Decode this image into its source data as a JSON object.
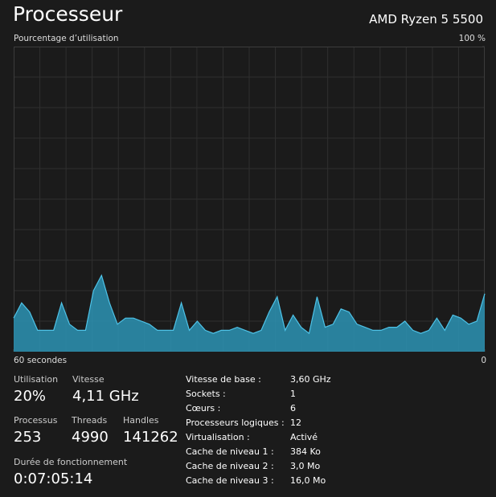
{
  "header": {
    "title": "Processeur",
    "cpu_name": "AMD Ryzen 5 5500"
  },
  "chart_data": {
    "type": "area",
    "ylabel": "Pourcentage d’utilisation",
    "ylim": [
      0,
      100
    ],
    "yticks": [
      {
        "value": 100,
        "label": "100 %"
      }
    ],
    "xlim": [
      60,
      0
    ],
    "xticks": [
      {
        "value": 60,
        "label": "60 secondes"
      },
      0
    ],
    "color": "#2b93b4",
    "line_color": "#4ec3e8",
    "grid": true,
    "values": [
      11,
      16,
      13,
      7,
      7,
      7,
      16,
      9,
      7,
      7,
      20,
      25,
      16,
      9,
      11,
      11,
      10,
      9,
      7,
      7,
      7,
      16,
      7,
      10,
      7,
      6,
      7,
      7,
      8,
      7,
      6,
      7,
      13,
      18,
      7,
      12,
      8,
      6,
      18,
      8,
      9,
      14,
      13,
      9,
      8,
      7,
      7,
      8,
      8,
      10,
      7,
      6,
      7,
      11,
      7,
      12,
      11,
      9,
      10,
      19
    ]
  },
  "stats": [
    {
      "label": "Utilisation",
      "value": "20%"
    },
    {
      "label": "Vitesse",
      "value": "4,11 GHz"
    },
    {
      "label": "Processus",
      "value": "253"
    },
    {
      "label": "Threads",
      "value": "4990"
    },
    {
      "label": "Handles",
      "value": "141262"
    },
    {
      "label": "Durée de fonctionnement",
      "value": "0:07:05:14"
    }
  ],
  "details": [
    {
      "label": "Vitesse de base :",
      "value": "3,60 GHz"
    },
    {
      "label": "Sockets :",
      "value": "1"
    },
    {
      "label": "Cœurs :",
      "value": "6"
    },
    {
      "label": "Processeurs logiques :",
      "value": "12"
    },
    {
      "label": "Virtualisation :",
      "value": "Activé"
    },
    {
      "label": "Cache de niveau 1 :",
      "value": "384 Ko"
    },
    {
      "label": "Cache de niveau 2 :",
      "value": "3,0 Mo"
    },
    {
      "label": "Cache de niveau 3 :",
      "value": "16,0 Mo"
    }
  ]
}
